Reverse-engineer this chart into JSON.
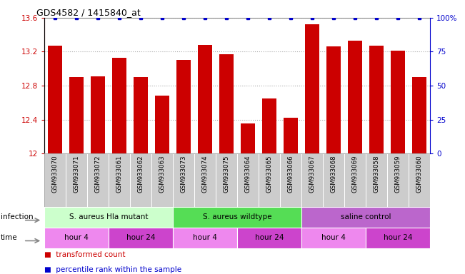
{
  "title": "GDS4582 / 1415840_at",
  "samples": [
    "GSM933070",
    "GSM933071",
    "GSM933072",
    "GSM933061",
    "GSM933062",
    "GSM933063",
    "GSM933073",
    "GSM933074",
    "GSM933075",
    "GSM933064",
    "GSM933065",
    "GSM933066",
    "GSM933067",
    "GSM933068",
    "GSM933069",
    "GSM933058",
    "GSM933059",
    "GSM933060"
  ],
  "bar_values": [
    13.27,
    12.9,
    12.91,
    13.13,
    12.9,
    12.68,
    13.1,
    13.28,
    13.17,
    12.35,
    12.65,
    12.42,
    13.52,
    13.26,
    13.33,
    13.27,
    13.21,
    12.9
  ],
  "percentile_values": [
    100,
    100,
    100,
    100,
    100,
    100,
    100,
    100,
    100,
    100,
    100,
    100,
    100,
    100,
    100,
    100,
    100,
    100
  ],
  "ylim_left": [
    12.0,
    13.6
  ],
  "ylim_right": [
    0,
    100
  ],
  "yticks_left": [
    12.0,
    12.4,
    12.8,
    13.2,
    13.6
  ],
  "ytick_labels_left": [
    "12",
    "12.4",
    "12.8",
    "13.2",
    "13.6"
  ],
  "yticks_right": [
    0,
    25,
    50,
    75,
    100
  ],
  "ytick_labels_right": [
    "0",
    "25",
    "50",
    "75",
    "100%"
  ],
  "bar_color": "#cc0000",
  "percentile_color": "#0000cc",
  "background_color": "#ffffff",
  "grid_color": "#aaaaaa",
  "infection_groups": [
    {
      "label": "S. aureus Hla mutant",
      "start": 0,
      "end": 6,
      "color": "#ccffcc"
    },
    {
      "label": "S. aureus wildtype",
      "start": 6,
      "end": 12,
      "color": "#55dd55"
    },
    {
      "label": "saline control",
      "start": 12,
      "end": 18,
      "color": "#bb66cc"
    }
  ],
  "time_groups": [
    {
      "label": "hour 4",
      "start": 0,
      "end": 3,
      "color": "#ee88ee"
    },
    {
      "label": "hour 24",
      "start": 3,
      "end": 6,
      "color": "#cc44cc"
    },
    {
      "label": "hour 4",
      "start": 6,
      "end": 9,
      "color": "#ee88ee"
    },
    {
      "label": "hour 24",
      "start": 9,
      "end": 12,
      "color": "#cc44cc"
    },
    {
      "label": "hour 4",
      "start": 12,
      "end": 15,
      "color": "#ee88ee"
    },
    {
      "label": "hour 24",
      "start": 15,
      "end": 18,
      "color": "#cc44cc"
    }
  ]
}
